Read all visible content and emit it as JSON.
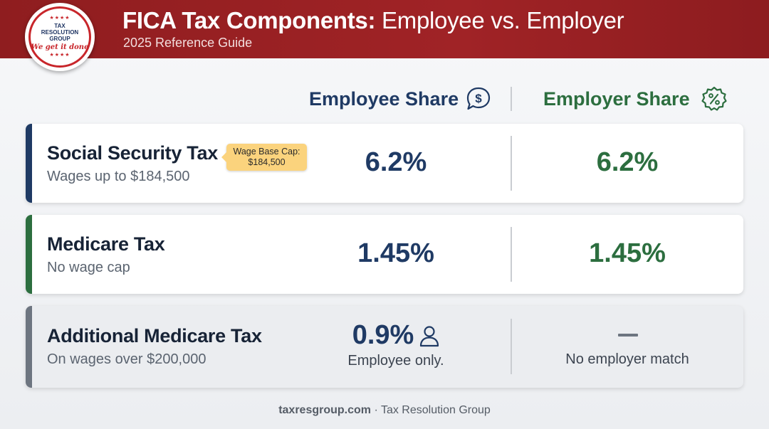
{
  "header": {
    "title_bold": "FICA Tax Components:",
    "title_rest": " Employee vs. Employer",
    "subtitle": "2025 Reference Guide",
    "brand_color": "#9a2124"
  },
  "logo": {
    "line1": "TAX RESOLUTION",
    "line2": "GROUP",
    "tagline": "We get it done",
    "stars": "★★★★"
  },
  "columns": {
    "employee": {
      "label": "Employee Share",
      "icon": "dollar-speech-bubble-icon",
      "color": "#1f3a64"
    },
    "employer": {
      "label": "Employer Share",
      "icon": "percent-badge-icon",
      "color": "#2c6e3f"
    }
  },
  "rows": [
    {
      "name": "Social Security Tax",
      "description": "Wages up to $184,500",
      "badge_line1": "Wage Base Cap:",
      "badge_line2": "$184,500",
      "employee_rate": "6.2%",
      "employer_rate": "6.2%",
      "accent_color": "#1f3a64"
    },
    {
      "name": "Medicare Tax",
      "description": "No wage cap",
      "employee_rate": "1.45%",
      "employer_rate": "1.45%",
      "accent_color": "#2c6e3f"
    },
    {
      "name": "Additional Medicare Tax",
      "description": "On wages over $200,000",
      "employee_rate": "0.9%",
      "employee_icon": "person-icon",
      "employee_note": "Employee only.",
      "employer_rate": "—",
      "employer_note": "No employer match",
      "accent_color": "#6d7580"
    }
  ],
  "footer": {
    "domain": "taxresgroup.com",
    "separator": " · ",
    "company": "Tax Resolution Group"
  }
}
